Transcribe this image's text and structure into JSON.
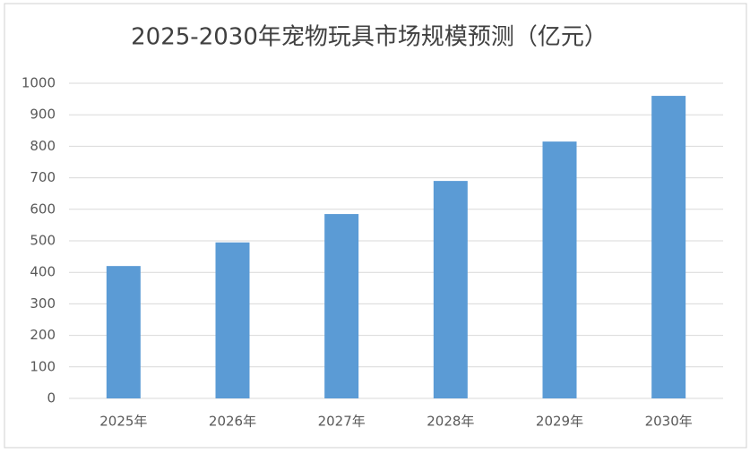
{
  "chart_data": {
    "type": "bar",
    "title": "2025-2030年宠物玩具市场规模预测（亿元）",
    "categories": [
      "2025年",
      "2026年",
      "2027年",
      "2028年",
      "2029年",
      "2030年"
    ],
    "values": [
      420,
      495,
      585,
      690,
      815,
      960
    ],
    "color": "#5b9bd5",
    "ylim": [
      0,
      1000
    ],
    "yticks": [
      0,
      100,
      200,
      300,
      400,
      500,
      600,
      700,
      800,
      900,
      1000
    ],
    "grid": true
  }
}
